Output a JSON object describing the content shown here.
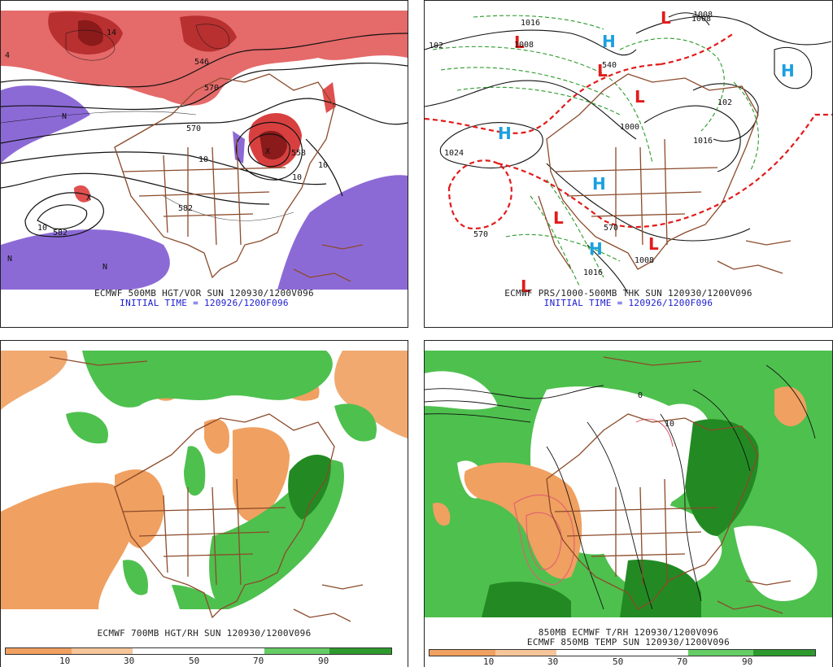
{
  "panels": {
    "top_left": {
      "caption_line1": "ECMWF 500MB HGT/VOR SUN 120930/1200V096",
      "caption_line2": "INITIAL TIME = 120926/1200F096",
      "contour_labels": [
        "4",
        "14",
        "546",
        "570",
        "10",
        "582",
        "582",
        "10",
        "558",
        "10",
        "10",
        "570",
        "N",
        "N",
        "N",
        "X",
        "X"
      ]
    },
    "top_right": {
      "caption_line1": "ECMWF PRS/1000-500MB THK SUN 120930/1200V096",
      "caption_line2": "INITIAL TIME = 120926/1200F096",
      "pressure_labels": [
        "1016",
        "1008",
        "1024",
        "1008",
        "1016",
        "1000",
        "1008",
        "102",
        "102",
        "570",
        "570",
        "540",
        "1016",
        "1008"
      ],
      "highs_symbol": "H",
      "lows_symbol": "L"
    },
    "bottom_left": {
      "caption_line1": "ECMWF 700MB HGT/RH SUN 120930/1200V096"
    },
    "bottom_right": {
      "caption_line1": "850MB ECMWF T/RH 120930/1200V096",
      "caption_line2": "ECMWF 850MB TEMP SUN 120930/1200V096",
      "contour_labels": [
        "0",
        "10"
      ]
    }
  },
  "rh_colorbar": {
    "ticks": [
      "10",
      "30",
      "50",
      "70",
      "90"
    ],
    "colors": [
      "#f0a060",
      "#f6c69a",
      "#ffffff",
      "#ffffff",
      "#66cc66",
      "#2e9a2e"
    ]
  },
  "colors": {
    "coast": "#8b4a2a",
    "vort_red": "#e05050",
    "vort_dark": "#8b1a1a",
    "vort_purple": "#8c6ad6",
    "rh_green": "#4ec04e",
    "rh_dark_green": "#238a23",
    "rh_orange": "#f0a060",
    "thk_red": "#e21b1b",
    "thk_green": "#2a9a2a",
    "high_blue": "#1aa0e0",
    "low_red": "#e21b1b"
  }
}
